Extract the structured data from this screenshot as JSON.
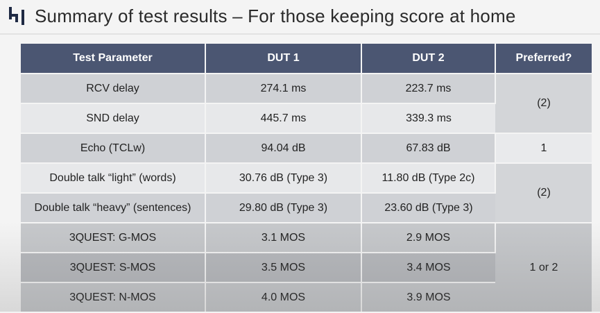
{
  "slide": {
    "title": "Summary of test results – For those keeping score at home"
  },
  "table": {
    "headers": [
      "Test Parameter",
      "DUT 1",
      "DUT 2",
      "Preferred?"
    ],
    "rows": [
      {
        "param": "RCV delay",
        "dut1": "274.1 ms",
        "dut2": "223.7 ms"
      },
      {
        "param": "SND delay",
        "dut1": "445.7 ms",
        "dut2": "339.3 ms"
      },
      {
        "param": "Echo (TCLw)",
        "dut1": "94.04 dB",
        "dut2": "67.83 dB"
      },
      {
        "param": "Double talk “light” (words)",
        "dut1": "30.76 dB (Type 3)",
        "dut2": "11.80 dB (Type 2c)"
      },
      {
        "param": "Double talk “heavy” (sentences)",
        "dut1": "29.80 dB (Type 3)",
        "dut2": "23.60 dB (Type 3)"
      },
      {
        "param": "3QUEST: G-MOS",
        "dut1": "3.1 MOS",
        "dut2": "2.9 MOS"
      },
      {
        "param": "3QUEST: S-MOS",
        "dut1": "3.5 MOS",
        "dut2": "3.4 MOS"
      },
      {
        "param": "3QUEST: N-MOS",
        "dut1": "4.0 MOS",
        "dut2": "3.9 MOS"
      }
    ],
    "preferred": [
      "(2)",
      "1",
      "(2)",
      "1 or 2"
    ]
  },
  "colors": {
    "header_bg": "#4b5672",
    "header_text": "#ffffff",
    "row_shaded": "#cfd1d5",
    "row_light": "#e7e8ea",
    "logo": "#1f2a44"
  },
  "icons": {
    "logo": "company-logo-icon"
  }
}
